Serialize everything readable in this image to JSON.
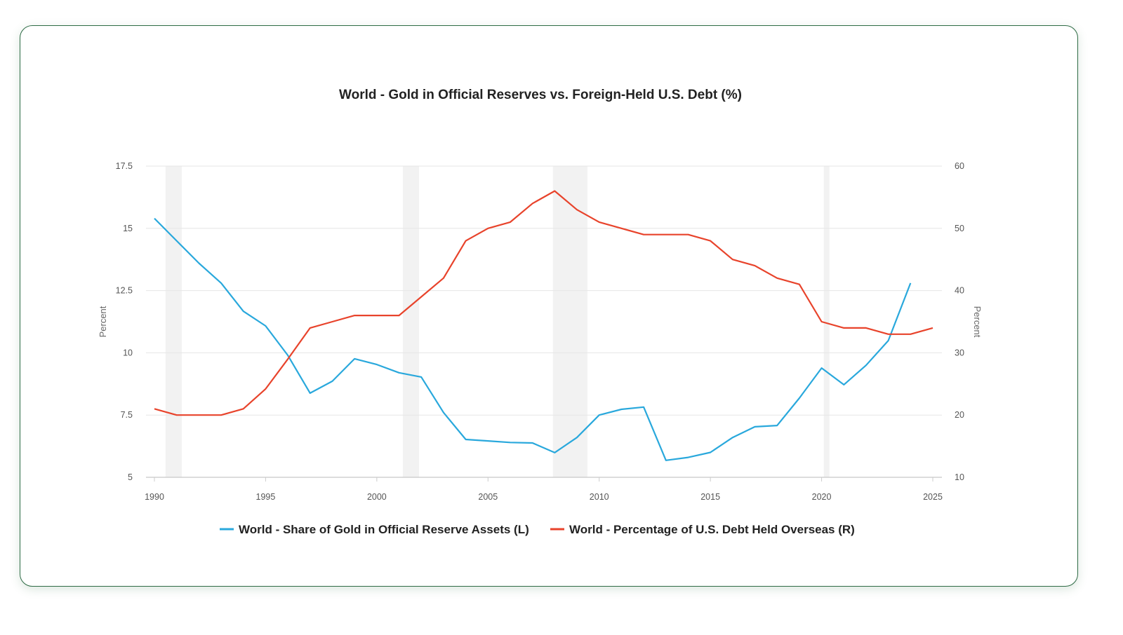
{
  "chart_data": {
    "type": "line",
    "title": "World - Gold in Official Reserves vs. Foreign-Held U.S. Debt (%)",
    "xlabel": "",
    "ylabel_left": "Percent",
    "ylabel_right": "Percent",
    "xlim": [
      1990,
      2025
    ],
    "ylim_left": [
      5,
      17.5
    ],
    "ylim_right": [
      10,
      60
    ],
    "x_ticks": [
      1990,
      1995,
      2000,
      2005,
      2010,
      2015,
      2020,
      2025
    ],
    "y_ticks_left": [
      "5",
      "7.5",
      "10",
      "12.5",
      "15",
      "17.5"
    ],
    "y_ticks_right": [
      "10",
      "20",
      "30",
      "40",
      "50",
      "60"
    ],
    "grid": true,
    "legend_position": "bottom",
    "recession_bands": [
      [
        1990.5,
        1991.23
      ],
      [
        2001.17,
        2001.9
      ],
      [
        2007.92,
        2009.47
      ],
      [
        2020.1,
        2020.35
      ]
    ],
    "series": [
      {
        "name": "World - Share of Gold in Official Reserve Assets (L)",
        "axis": "left",
        "color": "#29a8dc",
        "x": [
          1990,
          1991,
          1992,
          1993,
          1994,
          1995,
          1996,
          1997,
          1998,
          1999,
          2000,
          2001,
          2002,
          2003,
          2004,
          2005,
          2006,
          2007,
          2008,
          2009,
          2010,
          2011,
          2012,
          2013,
          2014,
          2015,
          2016,
          2017,
          2018,
          2019,
          2020,
          2021,
          2022,
          2023,
          2024
        ],
        "values": [
          15.4,
          14.5,
          13.6,
          12.8,
          11.67,
          11.08,
          9.9,
          8.38,
          8.86,
          9.76,
          9.53,
          9.2,
          9.03,
          7.6,
          6.52,
          6.46,
          6.4,
          6.38,
          5.99,
          6.6,
          7.5,
          7.73,
          7.82,
          5.68,
          5.8,
          6.0,
          6.6,
          7.03,
          7.08,
          8.18,
          9.39,
          8.72,
          9.5,
          10.49,
          12.8
        ]
      },
      {
        "name": "World - Percentage of U.S. Debt Held Overseas (R)",
        "axis": "right",
        "color": "#e8432b",
        "x": [
          1990,
          1991,
          1992,
          1993,
          1994,
          1995,
          1996,
          1997,
          1998,
          1999,
          2000,
          2001,
          2002,
          2003,
          2004,
          2005,
          2006,
          2007,
          2008,
          2009,
          2010,
          2011,
          2012,
          2013,
          2014,
          2015,
          2016,
          2017,
          2018,
          2019,
          2020,
          2021,
          2022,
          2023,
          2024,
          2025
        ],
        "values": [
          21,
          20,
          20,
          20,
          21,
          24.2,
          29,
          34,
          35,
          36,
          36,
          36,
          39,
          42,
          48,
          50,
          51,
          54,
          56,
          53,
          51,
          50,
          49,
          49,
          49,
          48,
          45,
          44,
          42,
          41,
          35,
          34,
          34,
          33,
          33,
          34
        ]
      }
    ]
  }
}
